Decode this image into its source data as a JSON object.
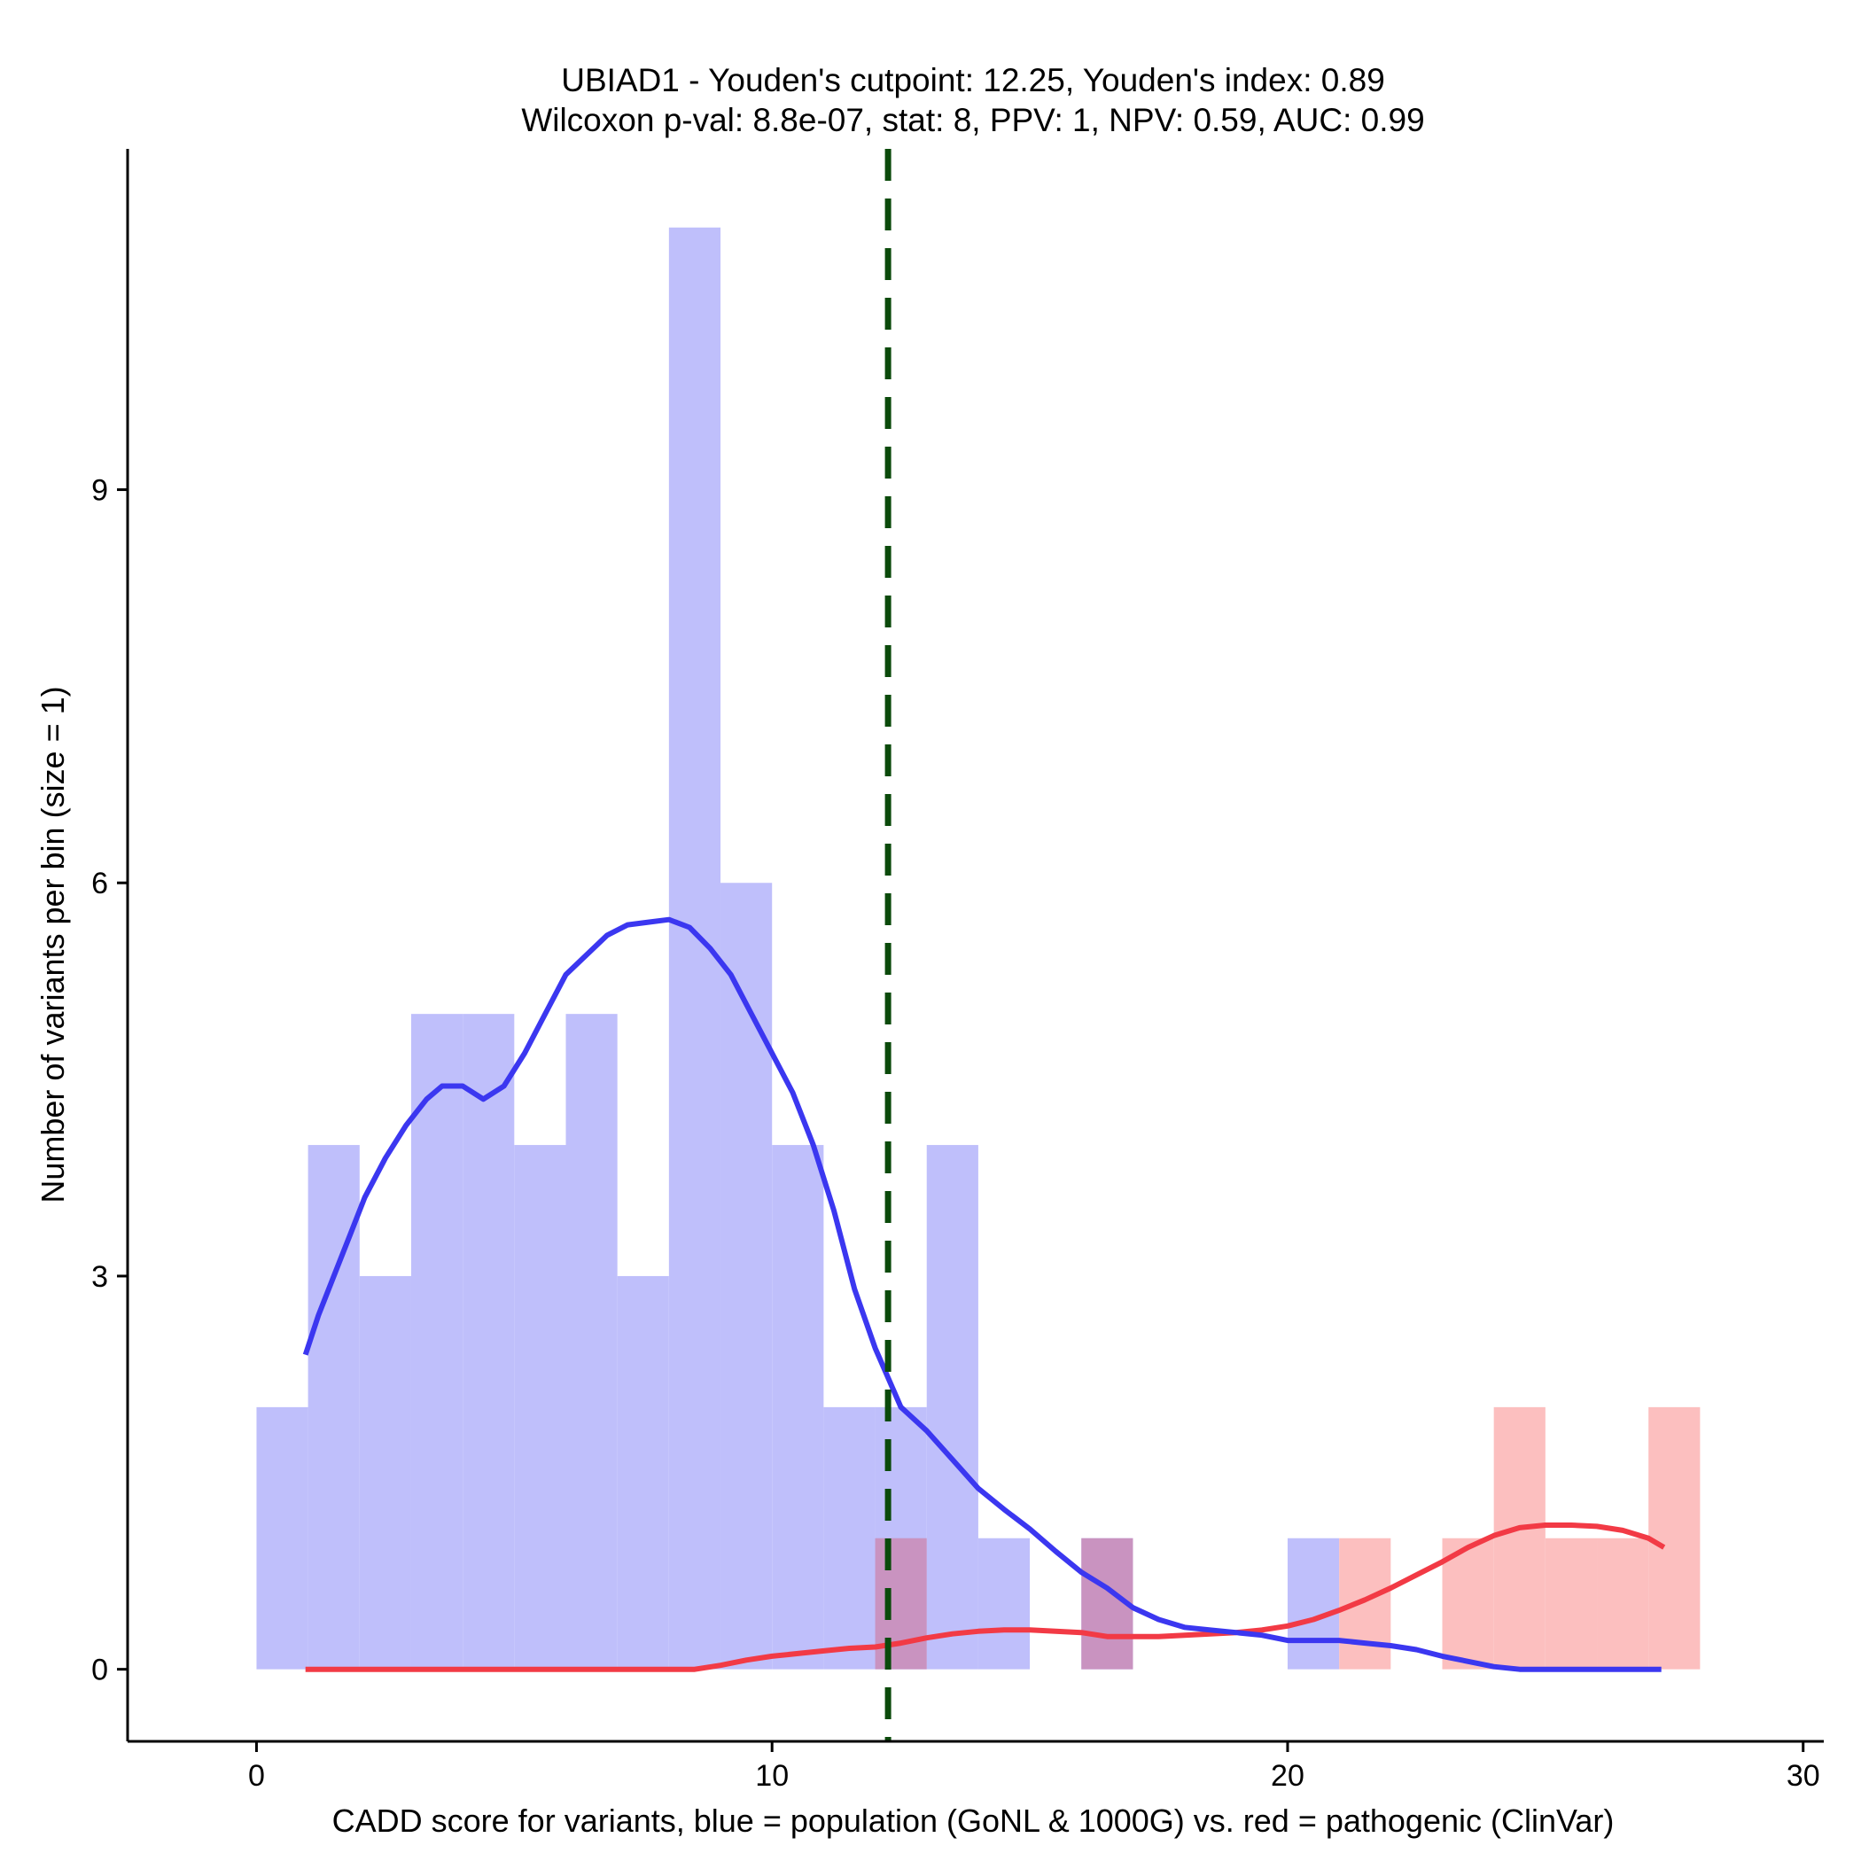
{
  "chart_data": {
    "type": "bar",
    "title_line1": "UBIAD1 - Youden's cutpoint: 12.25, Youden's index: 0.89",
    "title_line2": "Wilcoxon p-val: 8.8e-07, stat: 8, PPV: 1, NPV: 0.59, AUC: 0.99",
    "xlabel": "CADD score for variants, blue = population (GoNL & 1000G) vs. red = pathogenic (ClinVar)",
    "ylabel": "Number of variants per bin (size = 1)",
    "xlim": [
      -2.5,
      30.4
    ],
    "ylim": [
      -0.55,
      11.6
    ],
    "x_ticks": [
      0,
      10,
      20,
      30
    ],
    "x_tick_labels": [
      "0",
      "10",
      "20",
      "30"
    ],
    "y_ticks": [
      0,
      3,
      6,
      9
    ],
    "y_tick_labels": [
      "0",
      "3",
      "6",
      "9"
    ],
    "cutpoint": 12.25,
    "bin_size": 1,
    "colors": {
      "population_bar": "#bfbffb",
      "pathogenic_bar": "#fcbfbf",
      "overlap_bar": "#c993c0",
      "population_density": "#3b37f0",
      "pathogenic_density": "#f23a45",
      "cutpoint_line": "#0b4a0b"
    },
    "series": [
      {
        "name": "blue = population (GoNL & 1000G)",
        "bins": [
          {
            "x0": 0,
            "count": 2
          },
          {
            "x0": 1,
            "count": 4
          },
          {
            "x0": 2,
            "count": 3
          },
          {
            "x0": 3,
            "count": 5
          },
          {
            "x0": 4,
            "count": 5
          },
          {
            "x0": 5,
            "count": 4
          },
          {
            "x0": 6,
            "count": 5
          },
          {
            "x0": 7,
            "count": 3
          },
          {
            "x0": 8,
            "count": 11
          },
          {
            "x0": 9,
            "count": 6
          },
          {
            "x0": 10,
            "count": 4
          },
          {
            "x0": 11,
            "count": 2
          },
          {
            "x0": 12,
            "count": 2
          },
          {
            "x0": 13,
            "count": 4
          },
          {
            "x0": 14,
            "count": 1
          },
          {
            "x0": 16,
            "count": 1
          },
          {
            "x0": 20,
            "count": 1
          }
        ],
        "density": [
          [
            0.95,
            2.4
          ],
          [
            1.2,
            2.7
          ],
          [
            1.5,
            3.0
          ],
          [
            1.8,
            3.3
          ],
          [
            2.1,
            3.6
          ],
          [
            2.5,
            3.9
          ],
          [
            2.9,
            4.15
          ],
          [
            3.3,
            4.35
          ],
          [
            3.6,
            4.45
          ],
          [
            4.0,
            4.45
          ],
          [
            4.4,
            4.35
          ],
          [
            4.8,
            4.45
          ],
          [
            5.2,
            4.7
          ],
          [
            5.6,
            5.0
          ],
          [
            6.0,
            5.3
          ],
          [
            6.4,
            5.45
          ],
          [
            6.8,
            5.6
          ],
          [
            7.2,
            5.68
          ],
          [
            7.6,
            5.7
          ],
          [
            8.0,
            5.72
          ],
          [
            8.4,
            5.66
          ],
          [
            8.8,
            5.5
          ],
          [
            9.2,
            5.3
          ],
          [
            9.6,
            5.0
          ],
          [
            10.0,
            4.7
          ],
          [
            10.4,
            4.4
          ],
          [
            10.8,
            4.0
          ],
          [
            11.2,
            3.5
          ],
          [
            11.6,
            2.9
          ],
          [
            12.0,
            2.45
          ],
          [
            12.5,
            2.0
          ],
          [
            13.0,
            1.82
          ],
          [
            13.5,
            1.6
          ],
          [
            14.0,
            1.38
          ],
          [
            14.5,
            1.22
          ],
          [
            15.0,
            1.07
          ],
          [
            15.5,
            0.9
          ],
          [
            16.0,
            0.74
          ],
          [
            16.5,
            0.62
          ],
          [
            17.0,
            0.47
          ],
          [
            17.5,
            0.38
          ],
          [
            18.0,
            0.32
          ],
          [
            18.5,
            0.3
          ],
          [
            19.0,
            0.28
          ],
          [
            19.5,
            0.26
          ],
          [
            20.0,
            0.22
          ],
          [
            20.5,
            0.22
          ],
          [
            21.0,
            0.22
          ],
          [
            21.5,
            0.2
          ],
          [
            22.0,
            0.18
          ],
          [
            22.5,
            0.15
          ],
          [
            23.0,
            0.1
          ],
          [
            23.5,
            0.06
          ],
          [
            24.0,
            0.02
          ],
          [
            24.5,
            0.0
          ],
          [
            25.5,
            0.0
          ],
          [
            26.5,
            0.0
          ],
          [
            27.25,
            0.0
          ]
        ]
      },
      {
        "name": "red = pathogenic (ClinVar)",
        "bins": [
          {
            "x0": 12,
            "count": 1
          },
          {
            "x0": 16,
            "count": 1
          },
          {
            "x0": 21,
            "count": 1
          },
          {
            "x0": 23,
            "count": 1
          },
          {
            "x0": 24,
            "count": 2
          },
          {
            "x0": 25,
            "count": 1
          },
          {
            "x0": 26,
            "count": 1
          },
          {
            "x0": 27,
            "count": 2
          }
        ],
        "density": [
          [
            0.95,
            0.0
          ],
          [
            3.0,
            0.0
          ],
          [
            5.0,
            0.0
          ],
          [
            7.0,
            0.0
          ],
          [
            8.5,
            0.0
          ],
          [
            9.0,
            0.03
          ],
          [
            9.5,
            0.07
          ],
          [
            10.0,
            0.1
          ],
          [
            10.5,
            0.12
          ],
          [
            11.0,
            0.14
          ],
          [
            11.5,
            0.16
          ],
          [
            12.0,
            0.17
          ],
          [
            12.5,
            0.2
          ],
          [
            13.0,
            0.24
          ],
          [
            13.5,
            0.27
          ],
          [
            14.0,
            0.29
          ],
          [
            14.5,
            0.3
          ],
          [
            15.0,
            0.3
          ],
          [
            15.5,
            0.29
          ],
          [
            16.0,
            0.28
          ],
          [
            16.5,
            0.25
          ],
          [
            17.0,
            0.25
          ],
          [
            17.5,
            0.25
          ],
          [
            18.0,
            0.26
          ],
          [
            18.5,
            0.27
          ],
          [
            19.0,
            0.28
          ],
          [
            19.5,
            0.3
          ],
          [
            20.0,
            0.33
          ],
          [
            20.5,
            0.38
          ],
          [
            21.0,
            0.45
          ],
          [
            21.5,
            0.53
          ],
          [
            22.0,
            0.62
          ],
          [
            22.5,
            0.72
          ],
          [
            23.0,
            0.82
          ],
          [
            23.5,
            0.93
          ],
          [
            24.0,
            1.02
          ],
          [
            24.5,
            1.08
          ],
          [
            25.0,
            1.1
          ],
          [
            25.5,
            1.1
          ],
          [
            26.0,
            1.09
          ],
          [
            26.5,
            1.06
          ],
          [
            27.0,
            1.0
          ],
          [
            27.3,
            0.93
          ]
        ]
      }
    ]
  }
}
